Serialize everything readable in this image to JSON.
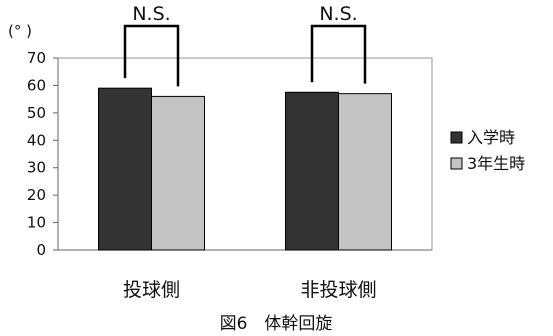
{
  "chart_data": {
    "type": "bar",
    "caption": "図6　体幹回旋",
    "unit_label": "(°  )",
    "categories": [
      "投球側",
      "非投球側"
    ],
    "series": [
      {
        "name": "入学時",
        "values": [
          59,
          57.5
        ],
        "color": "#333333"
      },
      {
        "name": "3年生時",
        "values": [
          56,
          57
        ],
        "color": "#c4c4c4"
      }
    ],
    "ylim": [
      0,
      70
    ],
    "yticks": [
      0,
      10,
      20,
      30,
      40,
      50,
      60,
      70
    ],
    "significance": [
      "N.S.",
      "N.S."
    ],
    "grid": false,
    "legend_position": "right"
  }
}
